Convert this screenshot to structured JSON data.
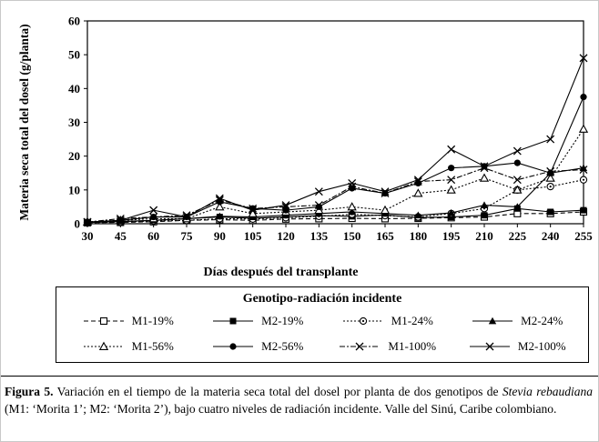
{
  "figure": {
    "caption_label": "Figura 5.",
    "caption_segments": [
      {
        "text": "Variación en el tiempo de la materia seca total del dosel por planta de dos genotipos de ",
        "italic": false
      },
      {
        "text": "Stevia rebaudiana",
        "italic": true
      },
      {
        "text": " (M1: ‘Morita 1’; M2: ‘Morita 2’), bajo cuatro niveles de radiación incidente. Valle del Sinú, Caribe colombiano.",
        "italic": false
      }
    ]
  },
  "chart_data": {
    "type": "line",
    "title": "",
    "xlabel": "Días después del transplante",
    "ylabel": "Materia seca total del dosel (g/planta)",
    "legend_title": "Genotipo-radiación incidente",
    "legend_position": "bottom-box",
    "grid": false,
    "x": [
      30,
      45,
      60,
      75,
      90,
      105,
      120,
      135,
      150,
      165,
      180,
      195,
      210,
      225,
      240,
      255
    ],
    "ylim": [
      0,
      60
    ],
    "yticks": [
      0,
      10,
      20,
      30,
      40,
      50,
      60
    ],
    "series": [
      {
        "name": "M1-19%",
        "marker": "open-square",
        "dash": "5 3",
        "values": [
          0.3,
          0.4,
          0.6,
          1.0,
          1.2,
          1.0,
          1.4,
          1.5,
          1.6,
          1.5,
          1.6,
          1.8,
          2.0,
          3.0,
          3.0,
          3.5
        ]
      },
      {
        "name": "M2-19%",
        "marker": "filled-square",
        "dash": "",
        "values": [
          0.4,
          0.6,
          1.0,
          1.5,
          2.0,
          1.6,
          2.0,
          2.4,
          2.2,
          2.6,
          1.8,
          2.0,
          2.5,
          4.5,
          3.5,
          4.0
        ]
      },
      {
        "name": "M1-24%",
        "marker": "circle-dot",
        "dash": "2 2",
        "values": [
          0.3,
          0.5,
          0.8,
          1.0,
          1.5,
          1.4,
          1.8,
          2.2,
          2.8,
          2.4,
          2.0,
          3.0,
          4.5,
          10.0,
          11.0,
          13.0
        ]
      },
      {
        "name": "M2-24%",
        "marker": "filled-triangle",
        "dash": "",
        "values": [
          0.4,
          0.7,
          1.0,
          1.5,
          2.2,
          2.0,
          2.5,
          3.0,
          3.5,
          3.0,
          2.5,
          3.2,
          5.5,
          5.0,
          15.0,
          16.5
        ]
      },
      {
        "name": "M1-56%",
        "marker": "open-triangle",
        "dash": "2 2",
        "values": [
          0.5,
          1.0,
          1.5,
          1.5,
          5.0,
          3.0,
          3.5,
          4.0,
          5.0,
          4.0,
          9.0,
          10.0,
          13.5,
          10.0,
          13.5,
          28.0
        ]
      },
      {
        "name": "M2-56%",
        "marker": "filled-circle",
        "dash": "",
        "values": [
          0.5,
          1.0,
          2.0,
          2.0,
          6.5,
          4.5,
          4.0,
          5.0,
          10.5,
          9.0,
          12.0,
          16.5,
          17.0,
          18.0,
          15.0,
          37.5
        ]
      },
      {
        "name": "M1-100%",
        "marker": "x",
        "dash": "6 2 2 2",
        "values": [
          0.5,
          1.5,
          2.0,
          2.5,
          7.0,
          4.5,
          5.0,
          5.5,
          11.0,
          9.0,
          12.5,
          13.0,
          16.5,
          13.0,
          15.5,
          16.0
        ]
      },
      {
        "name": "M2-100%",
        "marker": "x",
        "dash": "",
        "values": [
          0.5,
          1.0,
          4.0,
          2.0,
          7.5,
          4.0,
          5.5,
          9.5,
          12.0,
          9.5,
          13.0,
          22.0,
          17.0,
          21.5,
          25.0,
          49.0
        ]
      }
    ]
  }
}
